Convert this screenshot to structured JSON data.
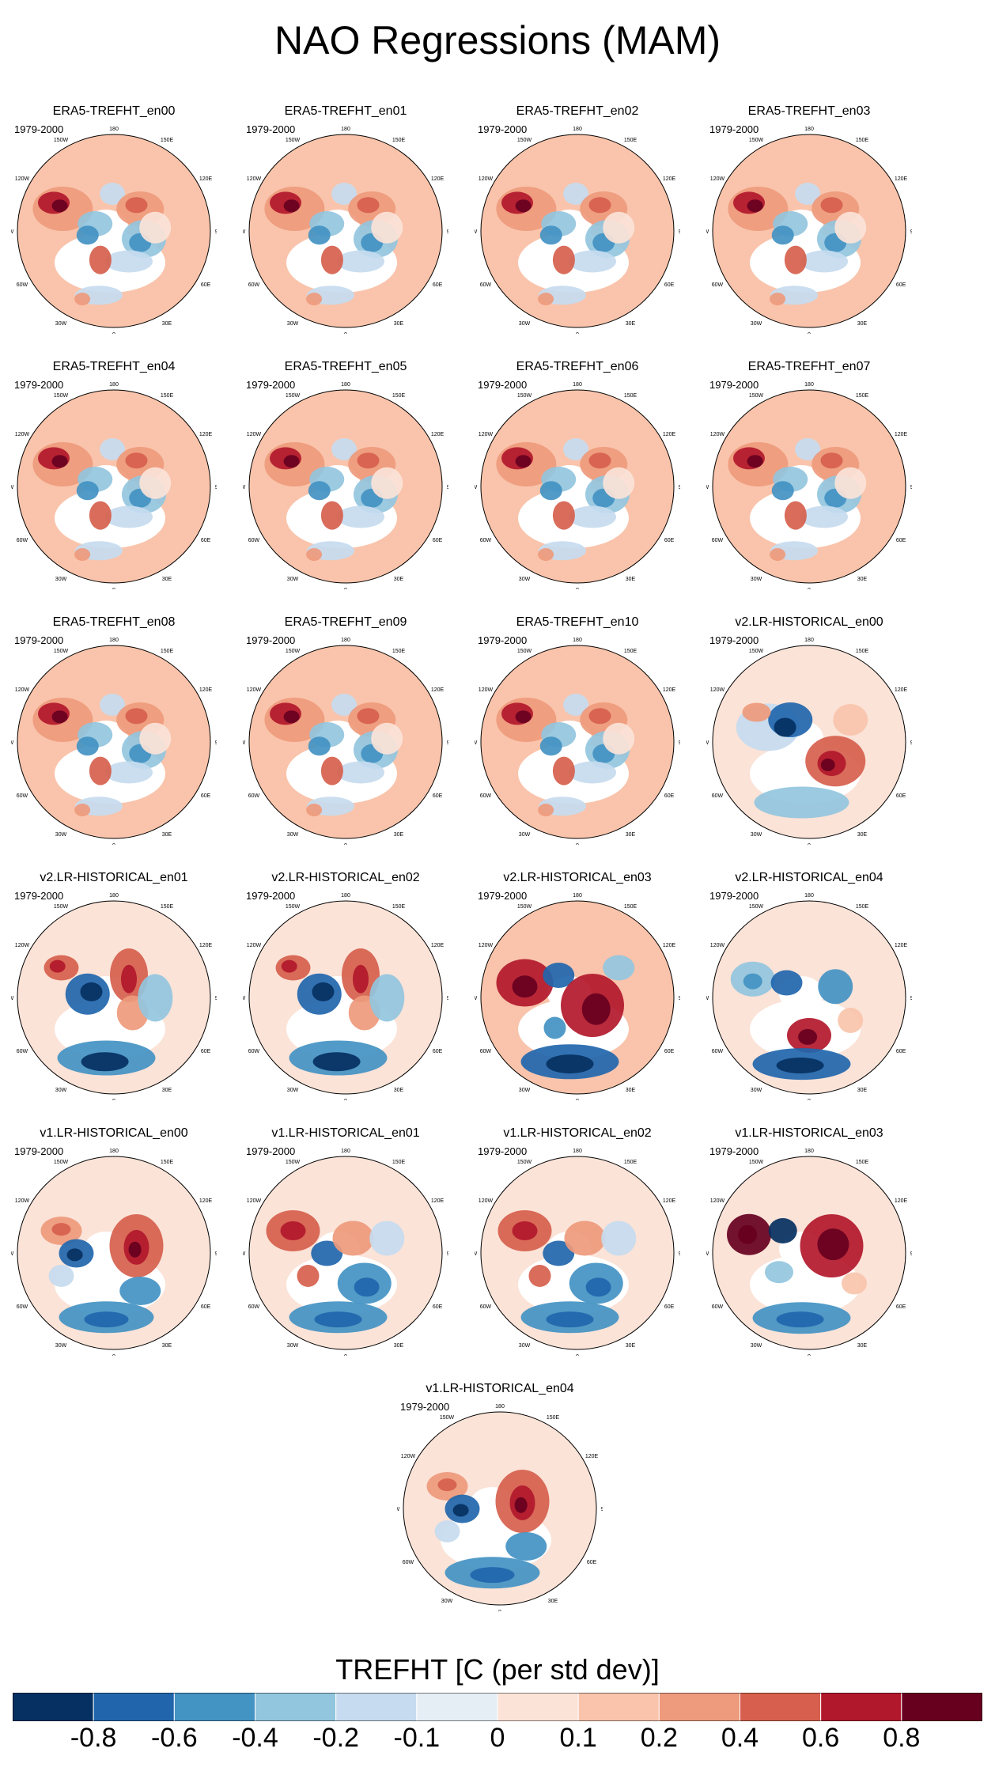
{
  "title": "NAO Regressions (MAM)",
  "chart_data": {
    "type": "heatmap",
    "title": "NAO Regressions (MAM)",
    "projection": "north-polar-stereographic",
    "period": "1979-2000",
    "longitude_labels": [
      "180",
      "150E",
      "120E",
      "90E",
      "60E",
      "30E",
      "0",
      "30W",
      "60W",
      "90W",
      "120W",
      "150W"
    ],
    "panels": [
      {
        "name": "ERA5-TREFHT_en00",
        "period": "1979-2000",
        "pattern": "era5"
      },
      {
        "name": "ERA5-TREFHT_en01",
        "period": "1979-2000",
        "pattern": "era5"
      },
      {
        "name": "ERA5-TREFHT_en02",
        "period": "1979-2000",
        "pattern": "era5"
      },
      {
        "name": "ERA5-TREFHT_en03",
        "period": "1979-2000",
        "pattern": "era5"
      },
      {
        "name": "ERA5-TREFHT_en04",
        "period": "1979-2000",
        "pattern": "era5"
      },
      {
        "name": "ERA5-TREFHT_en05",
        "period": "1979-2000",
        "pattern": "era5"
      },
      {
        "name": "ERA5-TREFHT_en06",
        "period": "1979-2000",
        "pattern": "era5"
      },
      {
        "name": "ERA5-TREFHT_en07",
        "period": "1979-2000",
        "pattern": "era5"
      },
      {
        "name": "ERA5-TREFHT_en08",
        "period": "1979-2000",
        "pattern": "era5"
      },
      {
        "name": "ERA5-TREFHT_en09",
        "period": "1979-2000",
        "pattern": "era5"
      },
      {
        "name": "ERA5-TREFHT_en10",
        "period": "1979-2000",
        "pattern": "era5"
      },
      {
        "name": "v2.LR-HISTORICAL_en00",
        "period": "1979-2000",
        "pattern": "v2a"
      },
      {
        "name": "v2.LR-HISTORICAL_en01",
        "period": "1979-2000",
        "pattern": "v2b"
      },
      {
        "name": "v2.LR-HISTORICAL_en02",
        "period": "1979-2000",
        "pattern": "v2b"
      },
      {
        "name": "v2.LR-HISTORICAL_en03",
        "period": "1979-2000",
        "pattern": "v2c"
      },
      {
        "name": "v2.LR-HISTORICAL_en04",
        "period": "1979-2000",
        "pattern": "v2d"
      },
      {
        "name": "v1.LR-HISTORICAL_en00",
        "period": "1979-2000",
        "pattern": "v1a"
      },
      {
        "name": "v1.LR-HISTORICAL_en01",
        "period": "1979-2000",
        "pattern": "v1b"
      },
      {
        "name": "v1.LR-HISTORICAL_en02",
        "period": "1979-2000",
        "pattern": "v1b"
      },
      {
        "name": "v1.LR-HISTORICAL_en03",
        "period": "1979-2000",
        "pattern": "v1c"
      },
      {
        "name": "v1.LR-HISTORICAL_en04",
        "period": "1979-2000",
        "pattern": "v1a"
      }
    ],
    "colorbar": {
      "title": "TREFHT [C (per std dev)]",
      "levels": [
        "-0.8",
        "-0.6",
        "-0.4",
        "-0.2",
        "-0.1",
        "0",
        "0.1",
        "0.2",
        "0.4",
        "0.6",
        "0.8"
      ],
      "colors": [
        "#053061",
        "#2166ac",
        "#4393c3",
        "#92c5de",
        "#c6dbef",
        "#e5eef5",
        "#fbe3d8",
        "#f9c4ab",
        "#ee9a7c",
        "#d6604d",
        "#b2182b",
        "#67001f"
      ]
    }
  }
}
